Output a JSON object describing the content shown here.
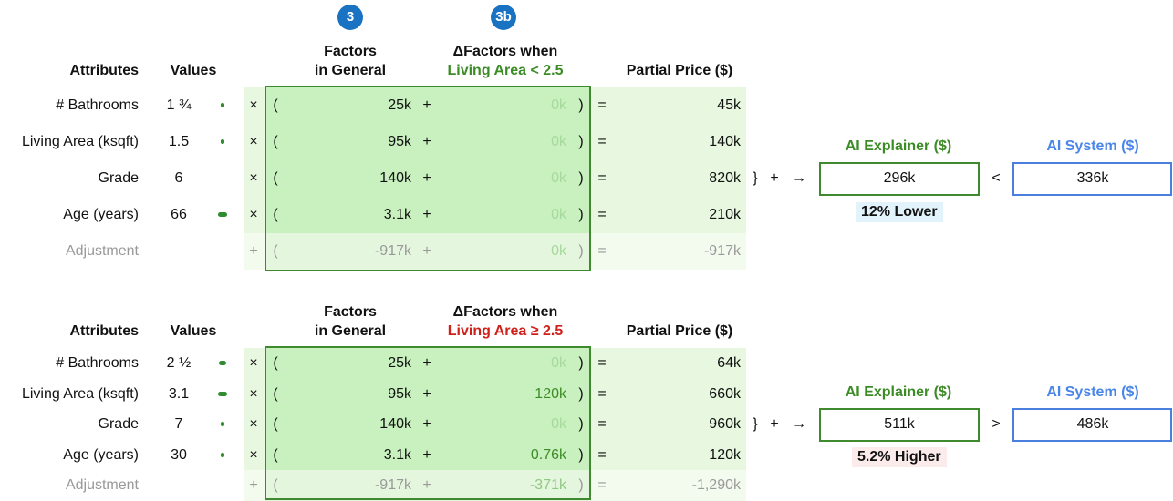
{
  "badges": [
    "3",
    "3b"
  ],
  "operators": {
    "times": "×",
    "open": "(",
    "plus": "+",
    "close": ")",
    "equals": "=",
    "sum": "}",
    "arrow": "→"
  },
  "panels": [
    {
      "headers": {
        "attributes": "Attributes",
        "values": "Values",
        "factors": [
          "Factors",
          "in General"
        ],
        "delta": "ΔFactors when",
        "condition": "Living Area < 2.5",
        "partial": "Partial Price ($)"
      },
      "rows": [
        {
          "attribute": "# Bathrooms",
          "value": "1 ¾",
          "factor": "25k",
          "delta": "0k",
          "partial": "45k"
        },
        {
          "attribute": "Living Area (ksqft)",
          "value": "1.5",
          "factor": "95k",
          "delta": "0k",
          "partial": "140k"
        },
        {
          "attribute": "Grade",
          "value": "6",
          "factor": "140k",
          "delta": "0k",
          "partial": "820k"
        },
        {
          "attribute": "Age (years)",
          "value": "66",
          "factor": "3.1k",
          "delta": "0k",
          "partial": "210k"
        }
      ],
      "adjustment": {
        "attribute": "Adjustment",
        "factor": "-917k",
        "delta": "0k",
        "partial": "-917k"
      },
      "explainer": {
        "label": "AI Explainer ($)",
        "value": "296k"
      },
      "comparison": "<",
      "system": {
        "label": "AI System ($)",
        "value": "336k"
      },
      "difference": "12% Lower"
    },
    {
      "headers": {
        "attributes": "Attributes",
        "values": "Values",
        "factors": [
          "Factors",
          "in General"
        ],
        "delta": "ΔFactors when",
        "condition": "Living Area ≥ 2.5",
        "partial": "Partial Price ($)"
      },
      "rows": [
        {
          "attribute": "# Bathrooms",
          "value": "2 ½",
          "factor": "25k",
          "delta": "0k",
          "partial": "64k"
        },
        {
          "attribute": "Living Area (ksqft)",
          "value": "3.1",
          "factor": "95k",
          "delta": "120k",
          "partial": "660k"
        },
        {
          "attribute": "Grade",
          "value": "7",
          "factor": "140k",
          "delta": "0k",
          "partial": "960k"
        },
        {
          "attribute": "Age (years)",
          "value": "30",
          "factor": "3.1k",
          "delta": "0.76k",
          "partial": "120k"
        }
      ],
      "adjustment": {
        "attribute": "Adjustment",
        "factor": "-917k",
        "delta": "-371k",
        "partial": "-1,290k"
      },
      "explainer": {
        "label": "AI Explainer ($)",
        "value": "511k"
      },
      "comparison": ">",
      "system": {
        "label": "AI System ($)",
        "value": "486k"
      },
      "difference": "5.2% Higher"
    }
  ]
}
